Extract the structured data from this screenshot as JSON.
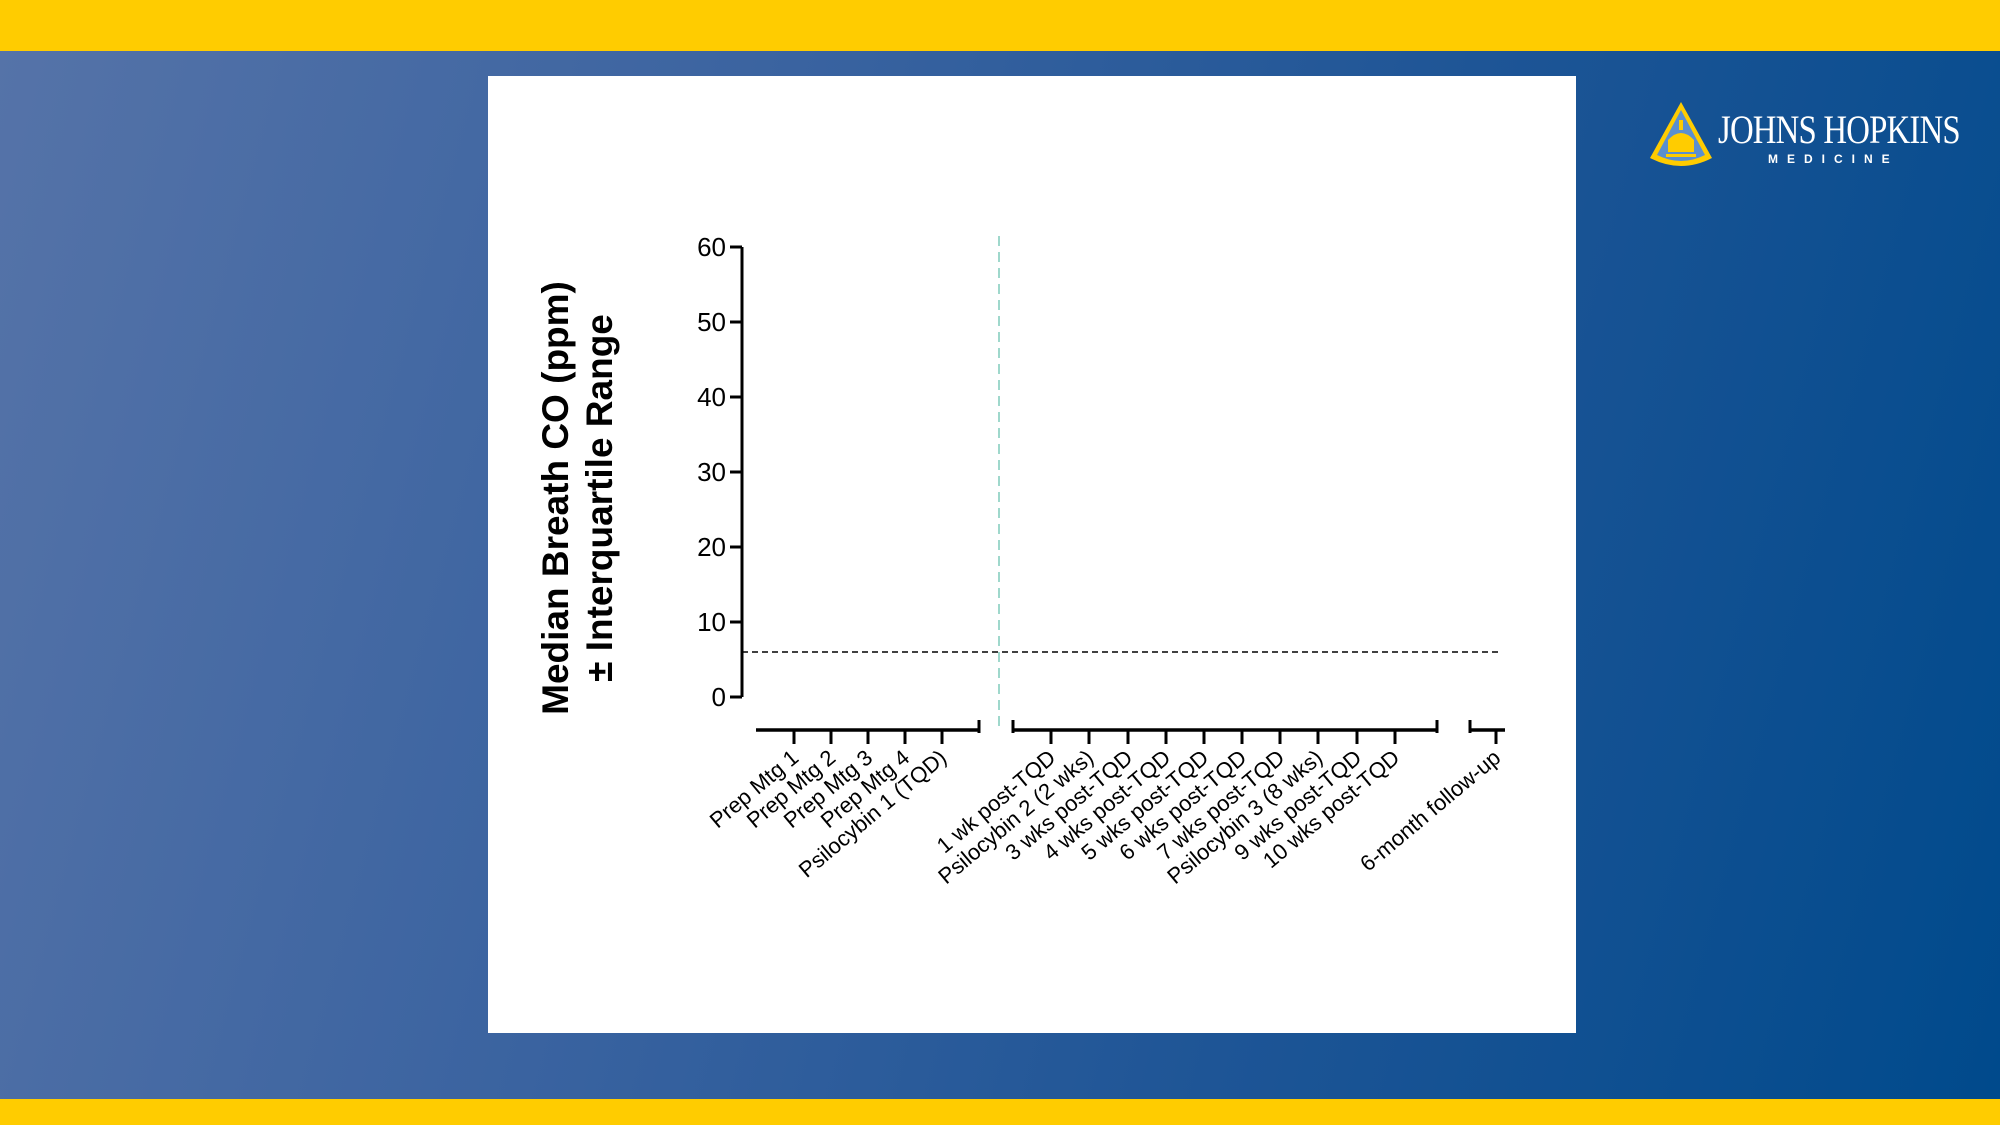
{
  "brand": {
    "name": "JOHNS HOPKINS",
    "sub": "MEDICINE",
    "colors": {
      "gold": "#ffcc00",
      "blue": "#004a8c",
      "reference_line": "#9fd8cc"
    }
  },
  "chart_data": {
    "type": "scatter",
    "ylabel_line1": "Median Breath CO (ppm)",
    "ylabel_line2": "± Interquartile Range",
    "ylim": [
      0,
      60
    ],
    "yticks": [
      "0",
      "10",
      "20",
      "30",
      "40",
      "50",
      "60"
    ],
    "categories": [
      "Prep Mtg 1",
      "Prep Mtg 2",
      "Prep Mtg 3",
      "Prep Mtg 4",
      "Psilocybin 1 (TQD)",
      "1 wk post-TQD",
      "Psilocybin 2 (2 wks)",
      "3 wks post-TQD",
      "4 wks post-TQD",
      "5 wks post-TQD",
      "6 wks post-TQD",
      "7 wks post-TQD",
      "Psilocybin 3 (8 wks)",
      "9 wks post-TQD",
      "10 wks post-TQD",
      "6-month follow-up"
    ],
    "groups": [
      [
        0,
        4
      ],
      [
        5,
        14
      ],
      [
        15,
        15
      ]
    ],
    "series": [],
    "threshold_y": 6,
    "vertical_reference_after_category": 4,
    "grid": false
  }
}
